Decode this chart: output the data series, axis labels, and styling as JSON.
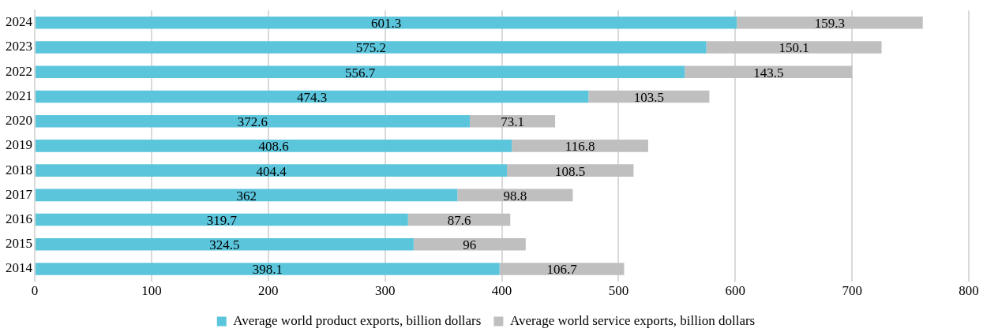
{
  "chart_data": {
    "type": "bar",
    "orientation": "horizontal",
    "stacked": true,
    "categories": [
      "2024",
      "2023",
      "2022",
      "2021",
      "2020",
      "2019",
      "2018",
      "2017",
      "2016",
      "2015",
      "2014"
    ],
    "series": [
      {
        "name": "Average world product exports, billion dollars",
        "color": "#5bc5dc",
        "values": [
          601.3,
          575.2,
          556.7,
          474.3,
          372.6,
          408.6,
          404.4,
          362,
          319.7,
          324.5,
          398.1
        ]
      },
      {
        "name": "Average world service exports, billion dollars",
        "color": "#bfbfbf",
        "values": [
          159.3,
          150.1,
          143.5,
          103.5,
          73.1,
          116.8,
          108.5,
          98.8,
          87.6,
          96,
          106.7
        ]
      }
    ],
    "xlim": [
      0,
      800
    ],
    "xticks": [
      0,
      100,
      200,
      300,
      400,
      500,
      600,
      700,
      800
    ],
    "grid": "x",
    "legend": "bottom",
    "data_labels": true
  }
}
